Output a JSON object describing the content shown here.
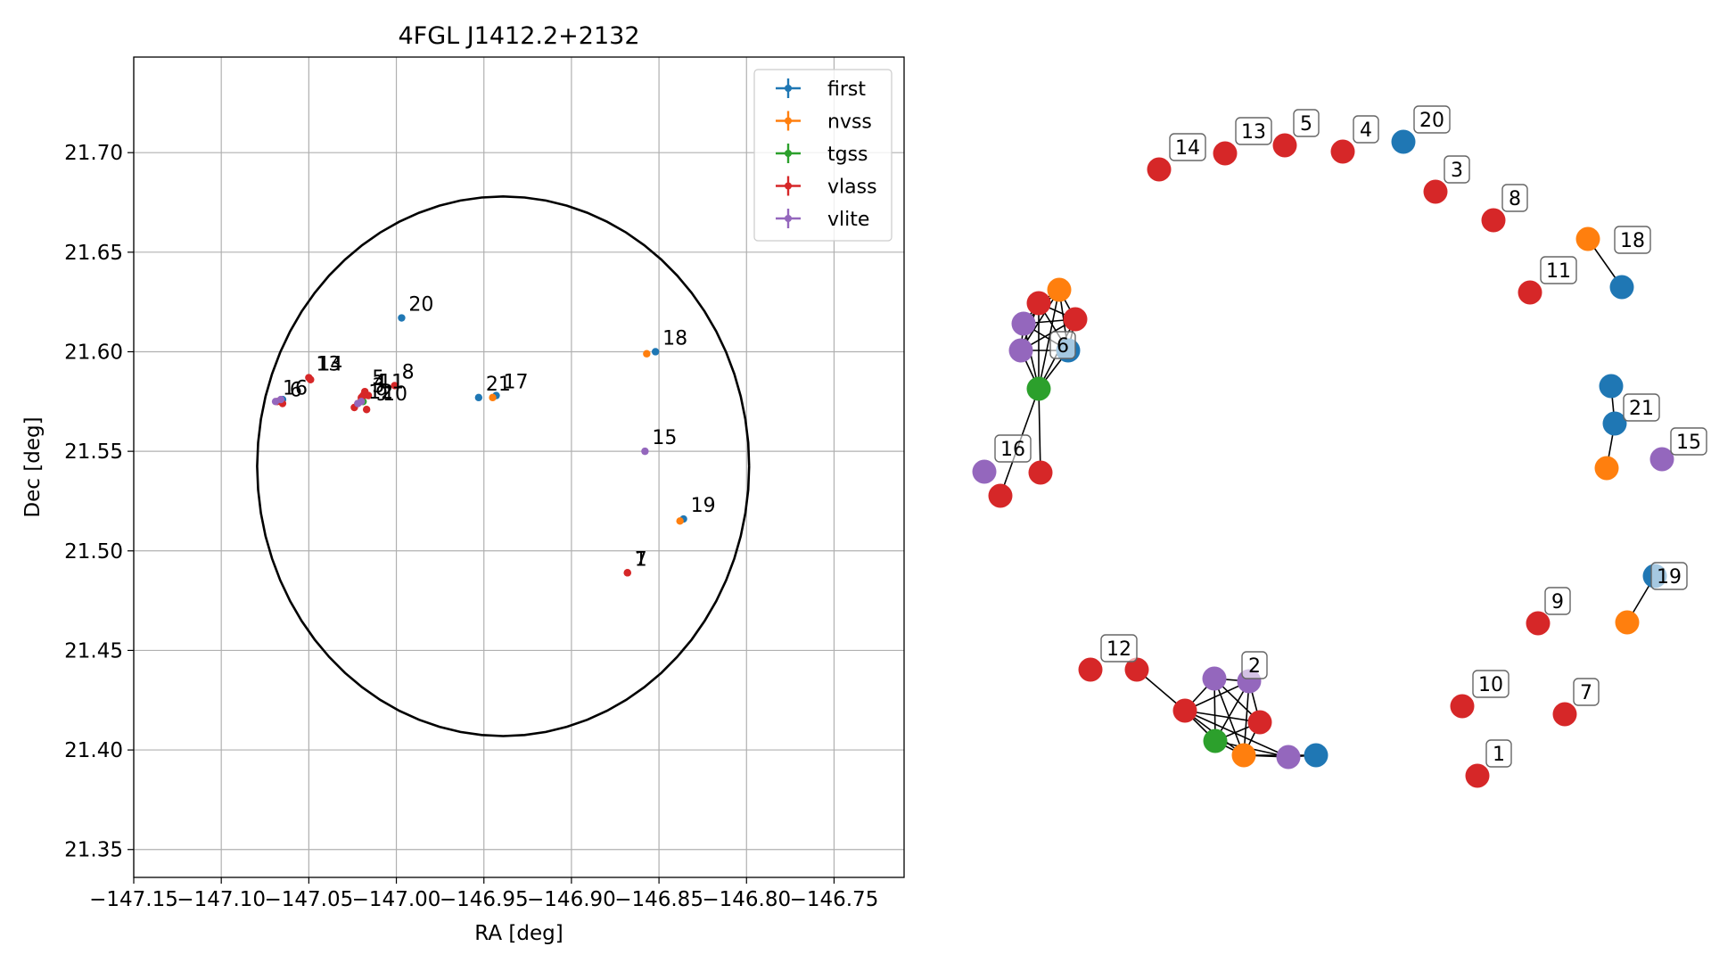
{
  "chart_data": [
    {
      "type": "scatter",
      "title": "4FGL J1412.2+2132",
      "xlabel": "RA [deg]",
      "ylabel": "Dec [deg]",
      "xlim": [
        -147.15,
        -146.71
      ],
      "ylim": [
        21.336,
        21.748
      ],
      "x_ticks": [
        -147.15,
        -147.1,
        -147.05,
        -147.0,
        -146.95,
        -146.9,
        -146.85,
        -146.8,
        -146.75
      ],
      "x_tick_labels": [
        "−147.15",
        "−147.10",
        "−147.05",
        "−147.00",
        "−146.95",
        "−146.90",
        "−146.85",
        "−146.80",
        "−146.75"
      ],
      "y_ticks": [
        21.35,
        21.4,
        21.45,
        21.5,
        21.55,
        21.6,
        21.65,
        21.7
      ],
      "y_tick_labels": [
        "21.35",
        "21.40",
        "21.45",
        "21.50",
        "21.55",
        "21.60",
        "21.65",
        "21.70"
      ],
      "grid": true,
      "legend_position": "top-right",
      "circle": {
        "center_ra": -146.939,
        "center_dec": 21.5425,
        "radius_ra": 0.1405,
        "radius_dec": 0.1355
      },
      "series": [
        {
          "name": "first",
          "color": "#1f77b4",
          "points": [
            {
              "ra": -146.997,
              "dec": 21.617
            },
            {
              "ra": -146.953,
              "dec": 21.577
            },
            {
              "ra": -146.943,
              "dec": 21.578
            },
            {
              "ra": -146.852,
              "dec": 21.6
            },
            {
              "ra": -146.836,
              "dec": 21.516
            },
            {
              "ra": -147.065,
              "dec": 21.576
            }
          ]
        },
        {
          "name": "nvss",
          "color": "#ff7f0e",
          "points": [
            {
              "ra": -146.857,
              "dec": 21.599
            },
            {
              "ra": -146.945,
              "dec": 21.577
            },
            {
              "ra": -146.838,
              "dec": 21.515
            },
            {
              "ra": -147.02,
              "dec": 21.576
            }
          ]
        },
        {
          "name": "tgss",
          "color": "#2ca02c",
          "points": [
            {
              "ra": -147.066,
              "dec": 21.575
            },
            {
              "ra": -147.019,
              "dec": 21.575
            }
          ]
        },
        {
          "name": "vlass",
          "color": "#d62728",
          "points": [
            {
              "ra": -147.05,
              "dec": 21.587
            },
            {
              "ra": -147.049,
              "dec": 21.586
            },
            {
              "ra": -147.018,
              "dec": 21.58
            },
            {
              "ra": -147.016,
              "dec": 21.578
            },
            {
              "ra": -147.019,
              "dec": 21.578
            },
            {
              "ra": -147.001,
              "dec": 21.583
            },
            {
              "ra": -147.02,
              "dec": 21.577
            },
            {
              "ra": -147.022,
              "dec": 21.574
            },
            {
              "ra": -147.024,
              "dec": 21.572
            },
            {
              "ra": -147.017,
              "dec": 21.571
            },
            {
              "ra": -147.068,
              "dec": 21.575
            },
            {
              "ra": -147.065,
              "dec": 21.574
            },
            {
              "ra": -146.868,
              "dec": 21.489
            },
            {
              "ra": -146.868,
              "dec": 21.489
            }
          ]
        },
        {
          "name": "vlite",
          "color": "#9467bd",
          "points": [
            {
              "ra": -146.858,
              "dec": 21.55
            },
            {
              "ra": -147.069,
              "dec": 21.575
            },
            {
              "ra": -147.066,
              "dec": 21.576
            },
            {
              "ra": -147.022,
              "dec": 21.574
            },
            {
              "ra": -147.02,
              "dec": 21.575
            }
          ]
        }
      ],
      "annotations": [
        {
          "text": "20",
          "ra": -146.997,
          "dec": 21.617
        },
        {
          "text": "18",
          "ra": -146.852,
          "dec": 21.6
        },
        {
          "text": "13",
          "ra": -147.05,
          "dec": 21.587
        },
        {
          "text": "14",
          "ra": -147.049,
          "dec": 21.587
        },
        {
          "text": "8",
          "ra": -147.001,
          "dec": 21.583
        },
        {
          "text": "5",
          "ra": -147.018,
          "dec": 21.58
        },
        {
          "text": "4",
          "ra": -147.017,
          "dec": 21.578
        },
        {
          "text": "11",
          "ra": -147.014,
          "dec": 21.578
        },
        {
          "text": "3",
          "ra": -147.018,
          "dec": 21.576
        },
        {
          "text": "12",
          "ra": -147.02,
          "dec": 21.573
        },
        {
          "text": "9",
          "ra": -147.016,
          "dec": 21.572
        },
        {
          "text": "10",
          "ra": -147.012,
          "dec": 21.572
        },
        {
          "text": "21",
          "ra": -146.953,
          "dec": 21.577
        },
        {
          "text": "17",
          "ra": -146.943,
          "dec": 21.578
        },
        {
          "text": "16",
          "ra": -147.069,
          "dec": 21.575
        },
        {
          "text": "6",
          "ra": -147.065,
          "dec": 21.574
        },
        {
          "text": "15",
          "ra": -146.858,
          "dec": 21.55
        },
        {
          "text": "19",
          "ra": -146.836,
          "dec": 21.516
        },
        {
          "text": "7",
          "ra": -146.868,
          "dec": 21.489
        },
        {
          "text": "1",
          "ra": -146.868,
          "dec": 21.489
        }
      ]
    },
    {
      "type": "network",
      "nodes": [
        {
          "id": 0,
          "color": "#d62728",
          "label": "14"
        },
        {
          "id": 1,
          "color": "#d62728",
          "label": "13"
        },
        {
          "id": 2,
          "color": "#d62728",
          "label": "5"
        },
        {
          "id": 3,
          "color": "#d62728",
          "label": "4"
        },
        {
          "id": 4,
          "color": "#1f77b4",
          "label": "20"
        },
        {
          "id": 5,
          "color": "#d62728",
          "label": "3"
        },
        {
          "id": 6,
          "color": "#d62728",
          "label": "8"
        },
        {
          "id": 7,
          "color": "#ff7f0e",
          "label": "18"
        },
        {
          "id": 8,
          "color": "#1f77b4",
          "label": ""
        },
        {
          "id": 9,
          "color": "#d62728",
          "label": "11"
        },
        {
          "id": 10,
          "color": "#ff7f0e",
          "label": ""
        },
        {
          "id": 11,
          "color": "#d62728",
          "label": ""
        },
        {
          "id": 12,
          "color": "#d62728",
          "label": ""
        },
        {
          "id": 13,
          "color": "#9467bd",
          "label": ""
        },
        {
          "id": 14,
          "color": "#9467bd",
          "label": ""
        },
        {
          "id": 15,
          "color": "#1f77b4",
          "label": "6"
        },
        {
          "id": 16,
          "color": "#2ca02c",
          "label": ""
        },
        {
          "id": 17,
          "color": "#9467bd",
          "label": "16"
        },
        {
          "id": 18,
          "color": "#d62728",
          "label": ""
        },
        {
          "id": 19,
          "color": "#d62728",
          "label": ""
        },
        {
          "id": 20,
          "color": "#1f77b4",
          "label": ""
        },
        {
          "id": 21,
          "color": "#1f77b4",
          "label": "21"
        },
        {
          "id": 22,
          "color": "#ff7f0e",
          "label": ""
        },
        {
          "id": 23,
          "color": "#9467bd",
          "label": "15"
        },
        {
          "id": 24,
          "color": "#1f77b4",
          "label": "19"
        },
        {
          "id": 25,
          "color": "#ff7f0e",
          "label": ""
        },
        {
          "id": 26,
          "color": "#d62728",
          "label": "9"
        },
        {
          "id": 27,
          "color": "#d62728",
          "label": "12"
        },
        {
          "id": 28,
          "color": "#d62728",
          "label": ""
        },
        {
          "id": 29,
          "color": "#9467bd",
          "label": ""
        },
        {
          "id": 30,
          "color": "#9467bd",
          "label": "2"
        },
        {
          "id": 31,
          "color": "#d62728",
          "label": ""
        },
        {
          "id": 32,
          "color": "#d62728",
          "label": ""
        },
        {
          "id": 33,
          "color": "#2ca02c",
          "label": ""
        },
        {
          "id": 34,
          "color": "#ff7f0e",
          "label": ""
        },
        {
          "id": 35,
          "color": "#9467bd",
          "label": ""
        },
        {
          "id": 36,
          "color": "#1f77b4",
          "label": ""
        },
        {
          "id": 37,
          "color": "#d62728",
          "label": "10"
        },
        {
          "id": 38,
          "color": "#d62728",
          "label": "7"
        },
        {
          "id": 39,
          "color": "#d62728",
          "label": "1"
        }
      ],
      "edges": [
        [
          7,
          8
        ],
        [
          11,
          12
        ],
        [
          11,
          13
        ],
        [
          11,
          14
        ],
        [
          11,
          15
        ],
        [
          11,
          16
        ],
        [
          11,
          10
        ],
        [
          10,
          12
        ],
        [
          10,
          13
        ],
        [
          10,
          14
        ],
        [
          10,
          15
        ],
        [
          10,
          16
        ],
        [
          12,
          13
        ],
        [
          12,
          14
        ],
        [
          12,
          15
        ],
        [
          12,
          16
        ],
        [
          13,
          14
        ],
        [
          13,
          15
        ],
        [
          13,
          16
        ],
        [
          14,
          15
        ],
        [
          14,
          16
        ],
        [
          15,
          16
        ],
        [
          16,
          19
        ],
        [
          16,
          18
        ],
        [
          20,
          21
        ],
        [
          21,
          22
        ],
        [
          24,
          25
        ],
        [
          28,
          31
        ],
        [
          31,
          29
        ],
        [
          31,
          30
        ],
        [
          31,
          32
        ],
        [
          31,
          33
        ],
        [
          31,
          34
        ],
        [
          31,
          35
        ],
        [
          29,
          30
        ],
        [
          29,
          32
        ],
        [
          29,
          33
        ],
        [
          29,
          34
        ],
        [
          30,
          32
        ],
        [
          30,
          33
        ],
        [
          30,
          34
        ],
        [
          32,
          33
        ],
        [
          32,
          34
        ],
        [
          33,
          34
        ],
        [
          33,
          35
        ],
        [
          34,
          35
        ],
        [
          34,
          36
        ],
        [
          35,
          36
        ]
      ]
    }
  ]
}
